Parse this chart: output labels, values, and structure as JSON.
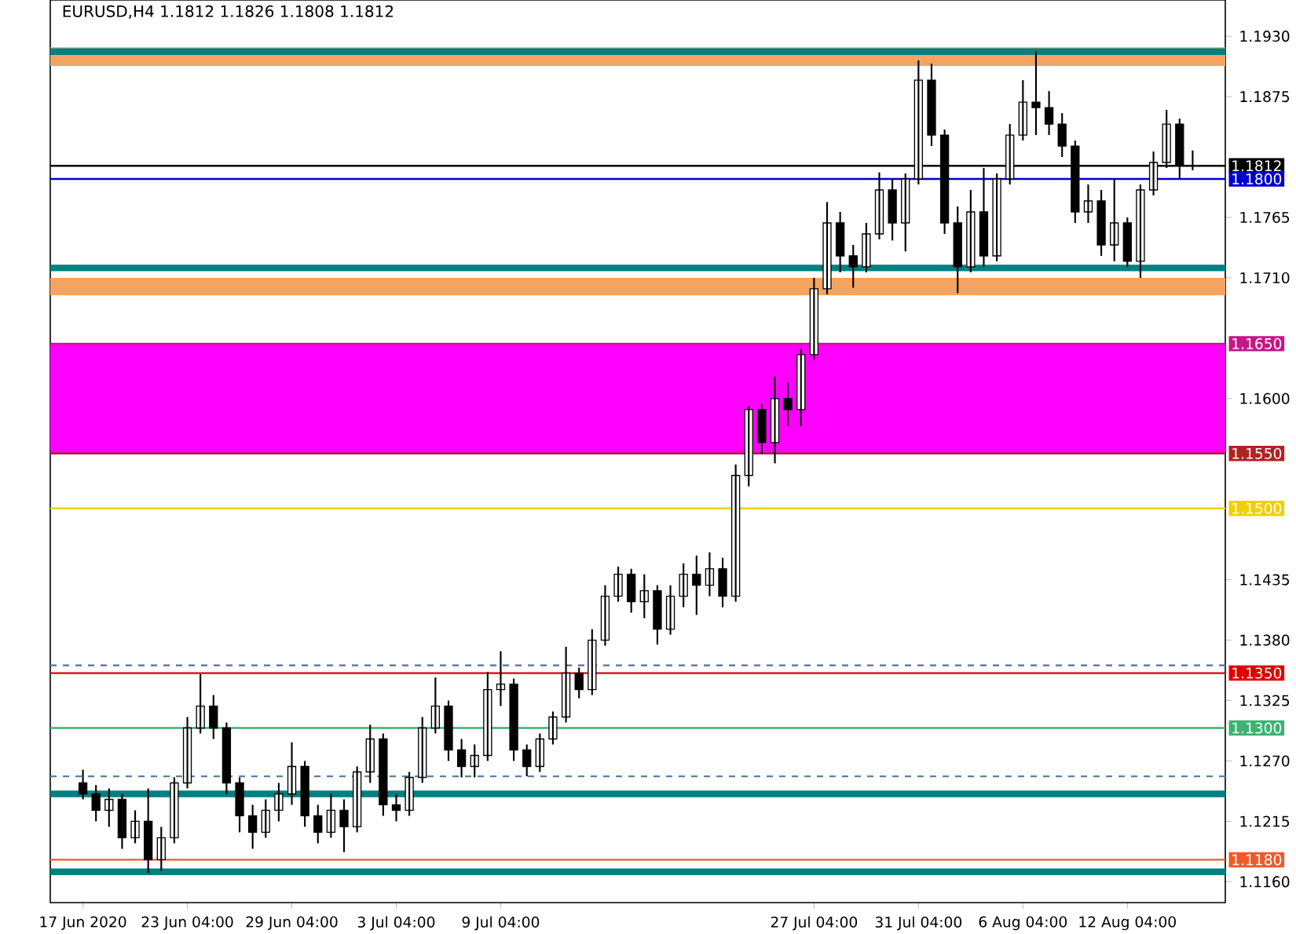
{
  "chart_data": {
    "type": "candlestick",
    "title": "EURUSD,H4  1.1812 1.1826 1.1808 1.1812",
    "categories": [
      "17 Jun 2020",
      null,
      null,
      null,
      null,
      null,
      null,
      null,
      "23 Jun 04:00",
      null,
      null,
      null,
      null,
      null,
      null,
      null,
      "29 Jun 04:00",
      null,
      null,
      null,
      null,
      null,
      null,
      null,
      "3 Jul 04:00",
      null,
      null,
      null,
      null,
      null,
      null,
      null,
      "9 Jul 04:00",
      null,
      null,
      null,
      null,
      null,
      null,
      null,
      null,
      null,
      null,
      null,
      null,
      null,
      null,
      null,
      null,
      null,
      null,
      null,
      null,
      null,
      null,
      null,
      "27 Jul 04:00",
      null,
      null,
      null,
      null,
      null,
      null,
      null,
      "31 Jul 04:00",
      null,
      null,
      null,
      null,
      null,
      null,
      null,
      "6 Aug 04:00",
      null,
      null,
      null,
      null,
      null,
      null,
      null,
      "12 Aug 04:00",
      null,
      null,
      null,
      null,
      null
    ],
    "ohlc": [
      [
        1.125,
        1.1262,
        1.1235,
        1.124
      ],
      [
        1.124,
        1.1248,
        1.1215,
        1.1225
      ],
      [
        1.1225,
        1.1245,
        1.121,
        1.1235
      ],
      [
        1.1235,
        1.124,
        1.119,
        1.12
      ],
      [
        1.12,
        1.1225,
        1.1195,
        1.1215
      ],
      [
        1.1215,
        1.1245,
        1.1168,
        1.118
      ],
      [
        1.118,
        1.121,
        1.117,
        1.12
      ],
      [
        1.12,
        1.1255,
        1.1195,
        1.125
      ],
      [
        1.125,
        1.131,
        1.1245,
        1.13
      ],
      [
        1.13,
        1.1349,
        1.1295,
        1.132
      ],
      [
        1.132,
        1.133,
        1.129,
        1.13
      ],
      [
        1.13,
        1.1305,
        1.124,
        1.125
      ],
      [
        1.125,
        1.1255,
        1.1205,
        1.122
      ],
      [
        1.122,
        1.123,
        1.119,
        1.1205
      ],
      [
        1.1205,
        1.1235,
        1.12,
        1.1225
      ],
      [
        1.1225,
        1.125,
        1.1215,
        1.124
      ],
      [
        1.124,
        1.1287,
        1.123,
        1.1265
      ],
      [
        1.1265,
        1.127,
        1.121,
        1.122
      ],
      [
        1.122,
        1.123,
        1.1195,
        1.1205
      ],
      [
        1.1205,
        1.124,
        1.12,
        1.1225
      ],
      [
        1.1225,
        1.1235,
        1.1187,
        1.121
      ],
      [
        1.121,
        1.1265,
        1.1205,
        1.126
      ],
      [
        1.126,
        1.1303,
        1.125,
        1.129
      ],
      [
        1.129,
        1.1295,
        1.122,
        1.123
      ],
      [
        1.123,
        1.124,
        1.1215,
        1.1225
      ],
      [
        1.1225,
        1.126,
        1.122,
        1.1255
      ],
      [
        1.1255,
        1.131,
        1.125,
        1.13
      ],
      [
        1.13,
        1.1346,
        1.1295,
        1.132
      ],
      [
        1.132,
        1.1325,
        1.127,
        1.128
      ],
      [
        1.128,
        1.129,
        1.1255,
        1.1265
      ],
      [
        1.1265,
        1.1285,
        1.1255,
        1.1275
      ],
      [
        1.1275,
        1.1351,
        1.127,
        1.1335
      ],
      [
        1.1335,
        1.137,
        1.132,
        1.134
      ],
      [
        1.134,
        1.1345,
        1.127,
        1.128
      ],
      [
        1.128,
        1.1285,
        1.1256,
        1.1265
      ],
      [
        1.1265,
        1.1295,
        1.126,
        1.129
      ],
      [
        1.129,
        1.1315,
        1.1285,
        1.131
      ],
      [
        1.131,
        1.1374,
        1.1305,
        1.135
      ],
      [
        1.135,
        1.1355,
        1.1327,
        1.1335
      ],
      [
        1.1335,
        1.139,
        1.133,
        1.138
      ],
      [
        1.138,
        1.143,
        1.1375,
        1.142
      ],
      [
        1.142,
        1.1447,
        1.1415,
        1.144
      ],
      [
        1.144,
        1.1445,
        1.1405,
        1.1415
      ],
      [
        1.1415,
        1.144,
        1.14,
        1.1425
      ],
      [
        1.1425,
        1.143,
        1.1376,
        1.139
      ],
      [
        1.139,
        1.143,
        1.1385,
        1.142
      ],
      [
        1.142,
        1.145,
        1.141,
        1.144
      ],
      [
        1.144,
        1.1457,
        1.1403,
        1.143
      ],
      [
        1.143,
        1.146,
        1.142,
        1.1445
      ],
      [
        1.1445,
        1.1455,
        1.141,
        1.142
      ],
      [
        1.142,
        1.154,
        1.1415,
        1.153
      ],
      [
        1.153,
        1.1593,
        1.152,
        1.159
      ],
      [
        1.159,
        1.1595,
        1.155,
        1.156
      ],
      [
        1.156,
        1.162,
        1.1541,
        1.16
      ],
      [
        1.16,
        1.1615,
        1.1575,
        1.159
      ],
      [
        1.159,
        1.1645,
        1.1575,
        1.164
      ],
      [
        1.164,
        1.171,
        1.1635,
        1.17
      ],
      [
        1.17,
        1.1779,
        1.1695,
        1.176
      ],
      [
        1.176,
        1.177,
        1.1715,
        1.173
      ],
      [
        1.173,
        1.174,
        1.1701,
        1.172
      ],
      [
        1.172,
        1.176,
        1.1715,
        1.175
      ],
      [
        1.175,
        1.1806,
        1.1745,
        1.179
      ],
      [
        1.179,
        1.18,
        1.1744,
        1.176
      ],
      [
        1.176,
        1.1805,
        1.1734,
        1.18
      ],
      [
        1.18,
        1.1908,
        1.1795,
        1.189
      ],
      [
        1.189,
        1.1905,
        1.183,
        1.184
      ],
      [
        1.184,
        1.1845,
        1.175,
        1.176
      ],
      [
        1.176,
        1.1775,
        1.1696,
        1.172
      ],
      [
        1.172,
        1.179,
        1.1715,
        1.177
      ],
      [
        1.177,
        1.181,
        1.172,
        1.173
      ],
      [
        1.173,
        1.1805,
        1.1725,
        1.18
      ],
      [
        1.18,
        1.185,
        1.1795,
        1.184
      ],
      [
        1.184,
        1.189,
        1.1835,
        1.187
      ],
      [
        1.187,
        1.1916,
        1.184,
        1.1865
      ],
      [
        1.1865,
        1.188,
        1.184,
        1.185
      ],
      [
        1.185,
        1.186,
        1.182,
        1.183
      ],
      [
        1.183,
        1.1835,
        1.176,
        1.177
      ],
      [
        1.177,
        1.1795,
        1.176,
        1.178
      ],
      [
        1.178,
        1.179,
        1.173,
        1.174
      ],
      [
        1.174,
        1.18,
        1.1725,
        1.176
      ],
      [
        1.176,
        1.1765,
        1.172,
        1.1725
      ],
      [
        1.1725,
        1.1795,
        1.171,
        1.179
      ],
      [
        1.179,
        1.1825,
        1.1785,
        1.1815
      ],
      [
        1.1815,
        1.1863,
        1.181,
        1.185
      ],
      [
        1.185,
        1.1855,
        1.18,
        1.1812
      ],
      [
        1.1812,
        1.1826,
        1.1808,
        1.1812
      ]
    ],
    "ylim": [
      1.1141,
      1.1963
    ],
    "yticks": [
      {
        "value": 1.193,
        "label": "1.1930"
      },
      {
        "value": 1.1875,
        "label": "1.1875"
      },
      {
        "value": 1.1765,
        "label": "1.1765"
      },
      {
        "value": 1.171,
        "label": "1.1710"
      },
      {
        "value": 1.16,
        "label": "1.1600"
      },
      {
        "value": 1.1435,
        "label": "1.1435"
      },
      {
        "value": 1.138,
        "label": "1.1380"
      },
      {
        "value": 1.1325,
        "label": "1.1325"
      },
      {
        "value": 1.127,
        "label": "1.1270"
      },
      {
        "value": 1.1215,
        "label": "1.1215"
      },
      {
        "value": 1.116,
        "label": "1.1160"
      }
    ],
    "bands": [
      {
        "axis": "y",
        "from": 1.155,
        "to": 1.165,
        "color": "#ff00ff"
      },
      {
        "axis": "y",
        "from": 1.1903,
        "to": 1.192,
        "color": "#f4a460"
      },
      {
        "axis": "y",
        "from": 1.1694,
        "to": 1.171,
        "color": "#f4a460"
      },
      {
        "axis": "y",
        "from": 1.1913,
        "to": 1.1919,
        "color": "#008080"
      },
      {
        "axis": "y",
        "from": 1.1716,
        "to": 1.1722,
        "color": "#008080"
      },
      {
        "axis": "y",
        "from": 1.1237,
        "to": 1.1243,
        "color": "#008080"
      },
      {
        "axis": "y",
        "from": 1.1166,
        "to": 1.1172,
        "color": "#008080"
      }
    ],
    "ref_lines": [
      {
        "axis": "y",
        "value": 1.1812,
        "label": "1.1812",
        "color": "#000000"
      },
      {
        "axis": "y",
        "value": 1.18,
        "label": "1.1800",
        "color": "#0000cd"
      },
      {
        "axis": "y",
        "value": 1.165,
        "label": "1.1650",
        "color": "#c71585"
      },
      {
        "axis": "y",
        "value": 1.155,
        "label": "1.1550",
        "color": "#b22222"
      },
      {
        "axis": "y",
        "value": 1.15,
        "label": "1.1500",
        "color": "#f0d000"
      },
      {
        "axis": "y",
        "value": 1.1357,
        "color": "#5f7fa0",
        "line_style": "dashed"
      },
      {
        "axis": "y",
        "value": 1.135,
        "label": "1.1350",
        "color": "#e00000"
      },
      {
        "axis": "y",
        "value": 1.13,
        "label": "1.1300",
        "color": "#3cb371"
      },
      {
        "axis": "y",
        "value": 1.1256,
        "color": "#5f7fa0",
        "line_style": "dashed"
      },
      {
        "axis": "y",
        "value": 1.118,
        "label": "1.1180",
        "color": "#f05a28"
      }
    ]
  }
}
